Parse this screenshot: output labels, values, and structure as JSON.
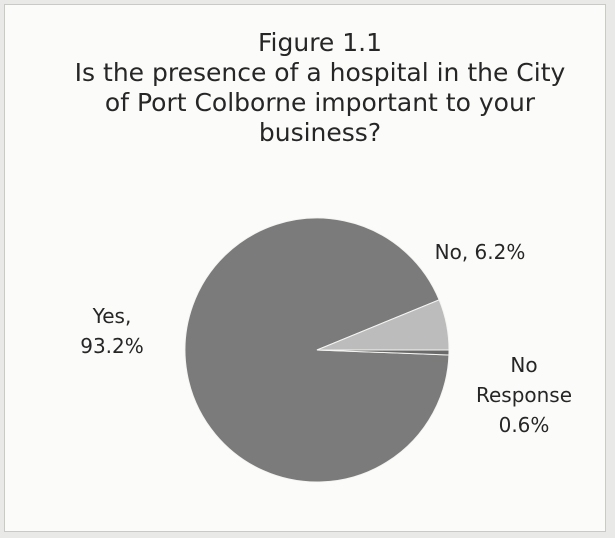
{
  "chart_data": {
    "type": "pie",
    "title": "Figure 1.1",
    "subtitle_lines": [
      "Is the presence of a hospital in the City",
      "of Port Colborne important to your",
      "business?"
    ],
    "slices": [
      {
        "label_lines": [
          "Yes,",
          "93.2%"
        ],
        "value": 93.2,
        "color": "#7b7b7b"
      },
      {
        "label_lines": [
          "No, 6.2%"
        ],
        "value": 6.2,
        "color": "#bcbcbc"
      },
      {
        "label_lines": [
          "No",
          "Response",
          "0.6%"
        ],
        "value": 0.6,
        "color": "#6a6a6a"
      }
    ]
  }
}
